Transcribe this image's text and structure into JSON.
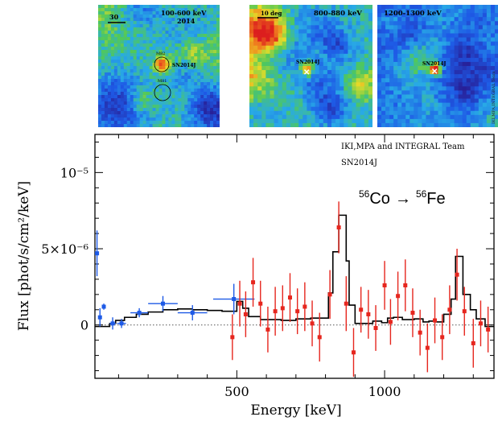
{
  "maps": [
    {
      "scale_label": "30",
      "band_label": "100-600 keV",
      "year_label": "2014",
      "source_labels": [
        "M82",
        "SN2014J",
        "M81"
      ]
    },
    {
      "scale_label": "10 deg",
      "band_label": "800-880 keV",
      "source_labels": [
        "SN2014J"
      ]
    },
    {
      "band_label": "1200-1300 keV",
      "source_labels": [
        "SN2014J"
      ],
      "credit": "IKI,MPA,INTEGRAL Team"
    }
  ],
  "colors": {
    "model": "#000000",
    "low_energy_points": "#1e5ae6",
    "high_energy_points": "#e6261e",
    "zero_line": "#555555"
  },
  "chart_data": {
    "type": "scatter",
    "title": "",
    "xlabel": "Energy [keV]",
    "ylabel": "Flux [phot/s/cm²/keV]",
    "xlim": [
      20,
      1370
    ],
    "ylim": [
      -3.5e-06,
      1.25e-05
    ],
    "x_ticks": [
      500,
      1000
    ],
    "y_ticks": [
      {
        "value": 0,
        "label": "0"
      },
      {
        "value": 5e-06,
        "label": "5×10⁻⁶"
      },
      {
        "value": 1e-05,
        "label": "10⁻⁵"
      }
    ],
    "grid": false,
    "annotations": [
      "IKI,MPA and INTEGRAL Team",
      "SN2014J"
    ],
    "reaction": {
      "parent_mass": "56",
      "parent": "Co",
      "arrow": "→",
      "daughter_mass": "56",
      "daughter": "Fe"
    },
    "model_steps": [
      [
        20,
        -1e-07
      ],
      [
        70,
        1e-07
      ],
      [
        90,
        3e-07
      ],
      [
        120,
        5e-07
      ],
      [
        160,
        7e-07
      ],
      [
        200,
        8.5e-07
      ],
      [
        250,
        1e-06
      ],
      [
        300,
        1.05e-06
      ],
      [
        350,
        1e-06
      ],
      [
        400,
        9.5e-07
      ],
      [
        450,
        9e-07
      ],
      [
        500,
        1.55e-06
      ],
      [
        520,
        1.1e-06
      ],
      [
        540,
        5.5e-07
      ],
      [
        580,
        3.5e-07
      ],
      [
        650,
        3e-07
      ],
      [
        700,
        4e-07
      ],
      [
        750,
        4.5e-07
      ],
      [
        790,
        4.5e-07
      ],
      [
        810,
        2.1e-06
      ],
      [
        825,
        4.8e-06
      ],
      [
        845,
        7.2e-06
      ],
      [
        870,
        4.2e-06
      ],
      [
        880,
        1.3e-06
      ],
      [
        900,
        1e-07
      ],
      [
        930,
        1e-07
      ],
      [
        960,
        2.5e-07
      ],
      [
        990,
        1.5e-07
      ],
      [
        1010,
        4.5e-07
      ],
      [
        1030,
        5e-07
      ],
      [
        1060,
        3.5e-07
      ],
      [
        1080,
        3.5e-07
      ],
      [
        1100,
        4e-07
      ],
      [
        1130,
        2e-07
      ],
      [
        1150,
        2.5e-07
      ],
      [
        1170,
        2e-07
      ],
      [
        1200,
        7e-07
      ],
      [
        1225,
        1.7e-06
      ],
      [
        1240,
        4.5e-06
      ],
      [
        1265,
        2e-06
      ],
      [
        1290,
        1e-06
      ],
      [
        1310,
        4e-07
      ],
      [
        1340,
        -1e-07
      ],
      [
        1370,
        -1e-07
      ]
    ],
    "series": [
      {
        "name": "",
        "points": [
          {
            "x": 27,
            "y": 4.7e-06,
            "yerr": 1.5e-06,
            "xerr": 5
          },
          {
            "x": 37,
            "y": 5e-07,
            "yerr": 6e-07,
            "xerr": 5
          },
          {
            "x": 50,
            "y": 1.2e-06,
            "yerr": 2e-07,
            "xerr": 6
          },
          {
            "x": 80,
            "y": 1e-07,
            "yerr": 4e-07,
            "xerr": 10
          },
          {
            "x": 110,
            "y": 1e-07,
            "yerr": 3e-07,
            "xerr": 15
          },
          {
            "x": 170,
            "y": 8e-07,
            "yerr": 3e-07,
            "xerr": 30
          },
          {
            "x": 250,
            "y": 1.4e-06,
            "yerr": 5e-07,
            "xerr": 50
          },
          {
            "x": 350,
            "y": 8e-07,
            "yerr": 5e-07,
            "xerr": 50
          },
          {
            "x": 490,
            "y": 1.7e-06,
            "yerr": 1e-06,
            "xerr": 70
          }
        ]
      },
      {
        "name": "",
        "points": [
          {
            "x": 485,
            "y": -8e-07,
            "yerr": 1.5e-06
          },
          {
            "x": 510,
            "y": 1.4e-06,
            "yerr": 1.5e-06
          },
          {
            "x": 530,
            "y": 7e-07,
            "yerr": 1.5e-06
          },
          {
            "x": 555,
            "y": 2.8e-06,
            "yerr": 1.6e-06
          },
          {
            "x": 580,
            "y": 1.4e-06,
            "yerr": 1.5e-06
          },
          {
            "x": 605,
            "y": -3e-07,
            "yerr": 1.5e-06
          },
          {
            "x": 630,
            "y": 9e-07,
            "yerr": 1.6e-06
          },
          {
            "x": 655,
            "y": 1.1e-06,
            "yerr": 1.5e-06
          },
          {
            "x": 680,
            "y": 1.8e-06,
            "yerr": 1.6e-06
          },
          {
            "x": 705,
            "y": 9e-07,
            "yerr": 1.5e-06
          },
          {
            "x": 730,
            "y": 1.2e-06,
            "yerr": 1.6e-06
          },
          {
            "x": 755,
            "y": 1e-07,
            "yerr": 1.5e-06
          },
          {
            "x": 780,
            "y": -8e-07,
            "yerr": 1.6e-06
          },
          {
            "x": 815,
            "y": 2e-06,
            "yerr": 1.6e-06
          },
          {
            "x": 845,
            "y": 6.4e-06,
            "yerr": 1.7e-06
          },
          {
            "x": 870,
            "y": 1.4e-06,
            "yerr": 1.8e-06
          },
          {
            "x": 895,
            "y": -1.8e-06,
            "yerr": 1.6e-06
          },
          {
            "x": 920,
            "y": 1e-06,
            "yerr": 1.5e-06
          },
          {
            "x": 945,
            "y": 7e-07,
            "yerr": 1.6e-06
          },
          {
            "x": 970,
            "y": -2e-07,
            "yerr": 1.5e-06
          },
          {
            "x": 1000,
            "y": 2.6e-06,
            "yerr": 1.6e-06
          },
          {
            "x": 1020,
            "y": 2e-07,
            "yerr": 1.5e-06
          },
          {
            "x": 1045,
            "y": 1.9e-06,
            "yerr": 1.6e-06
          },
          {
            "x": 1070,
            "y": 2.6e-06,
            "yerr": 1.7e-06
          },
          {
            "x": 1095,
            "y": 8e-07,
            "yerr": 1.6e-06
          },
          {
            "x": 1120,
            "y": -5e-07,
            "yerr": 1.5e-06
          },
          {
            "x": 1145,
            "y": -1.5e-06,
            "yerr": 1.6e-06
          },
          {
            "x": 1170,
            "y": 3e-07,
            "yerr": 1.5e-06
          },
          {
            "x": 1195,
            "y": -8e-07,
            "yerr": 1.5e-06
          },
          {
            "x": 1220,
            "y": 1e-06,
            "yerr": 1.6e-06
          },
          {
            "x": 1245,
            "y": 3.3e-06,
            "yerr": 1.7e-06
          },
          {
            "x": 1270,
            "y": 9e-07,
            "yerr": 1.6e-06
          },
          {
            "x": 1300,
            "y": -1.2e-06,
            "yerr": 1.6e-06
          },
          {
            "x": 1325,
            "y": 1e-07,
            "yerr": 1.5e-06
          },
          {
            "x": 1350,
            "y": -3e-07,
            "yerr": 1.5e-06
          }
        ]
      }
    ]
  }
}
